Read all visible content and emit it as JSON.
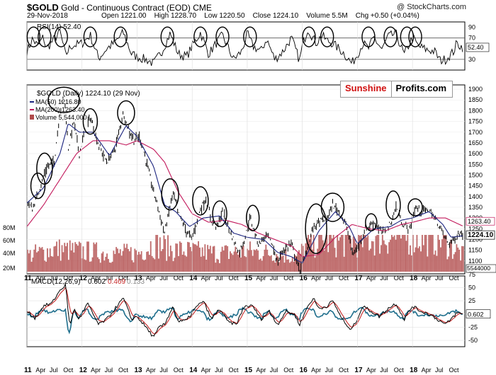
{
  "header": {
    "symbol": "$GOLD",
    "name": "Gold - Continuous Contract (EOD)",
    "exchange": "CME",
    "date": "29-Nov-2018",
    "open_label": "Open",
    "open": "1221.00",
    "high_label": "High",
    "high": "1228.70",
    "low_label": "Low",
    "low": "1220.50",
    "close_label": "Close",
    "close": "1224.10",
    "volume_label": "Volume",
    "volume": "5.5M",
    "chg_label": "Chg",
    "chg": "+0.50 (+0.04%)",
    "copyright": "@ StockCharts.com"
  },
  "logo": {
    "part1": "Sunshine",
    "part2": "Profits.com"
  },
  "colors": {
    "price": "#000000",
    "ma50": "#1a237e",
    "ma200": "#c2185b",
    "volume": "#b04a4a",
    "macd": "#000000",
    "signal": "#c62828",
    "histogram": "#1e6e8c",
    "rsi": "#000000"
  },
  "chart_data": [
    {
      "type": "line",
      "panel": "rsi",
      "legend": "RSI(14) 52.40",
      "current_value_label": "52.40",
      "ylim": [
        10,
        100
      ],
      "yticks": [
        30,
        50,
        70,
        90
      ],
      "reference_lines": [
        30,
        70
      ],
      "keypoints": [
        [
          2011.0,
          45
        ],
        [
          2011.1,
          68
        ],
        [
          2011.2,
          55
        ],
        [
          2011.3,
          72
        ],
        [
          2011.35,
          50
        ],
        [
          2011.45,
          62
        ],
        [
          2011.6,
          82
        ],
        [
          2011.7,
          38
        ],
        [
          2011.8,
          55
        ],
        [
          2012.0,
          60
        ],
        [
          2012.15,
          75
        ],
        [
          2012.3,
          32
        ],
        [
          2012.45,
          50
        ],
        [
          2012.6,
          62
        ],
        [
          2012.75,
          80
        ],
        [
          2012.9,
          40
        ],
        [
          2013.0,
          35
        ],
        [
          2013.2,
          28
        ],
        [
          2013.3,
          22
        ],
        [
          2013.45,
          45
        ],
        [
          2013.6,
          78
        ],
        [
          2013.75,
          40
        ],
        [
          2013.9,
          35
        ],
        [
          2014.0,
          55
        ],
        [
          2014.15,
          80
        ],
        [
          2014.3,
          40
        ],
        [
          2014.45,
          62
        ],
        [
          2014.55,
          75
        ],
        [
          2014.75,
          30
        ],
        [
          2014.9,
          45
        ],
        [
          2015.0,
          78
        ],
        [
          2015.1,
          55
        ],
        [
          2015.25,
          45
        ],
        [
          2015.35,
          68
        ],
        [
          2015.5,
          30
        ],
        [
          2015.65,
          45
        ],
        [
          2015.8,
          70
        ],
        [
          2015.95,
          28
        ],
        [
          2016.0,
          55
        ],
        [
          2016.1,
          88
        ],
        [
          2016.25,
          60
        ],
        [
          2016.35,
          75
        ],
        [
          2016.45,
          65
        ],
        [
          2016.55,
          60
        ],
        [
          2016.75,
          42
        ],
        [
          2016.9,
          22
        ],
        [
          2017.0,
          40
        ],
        [
          2017.1,
          60
        ],
        [
          2017.2,
          50
        ],
        [
          2017.3,
          70
        ],
        [
          2017.45,
          48
        ],
        [
          2017.55,
          72
        ],
        [
          2017.7,
          78
        ],
        [
          2017.85,
          38
        ],
        [
          2018.0,
          72
        ],
        [
          2018.1,
          55
        ],
        [
          2018.25,
          48
        ],
        [
          2018.4,
          45
        ],
        [
          2018.5,
          28
        ],
        [
          2018.6,
          30
        ],
        [
          2018.75,
          45
        ],
        [
          2018.8,
          60
        ],
        [
          2018.91,
          52.4
        ]
      ]
    },
    {
      "type": "line",
      "panel": "price",
      "legend_price": "$GOLD (Daily) 1224.10 (29 Nov)",
      "legend_ma50": "MA(50) 1216.80",
      "legend_ma200": "MA(200) 1263.40",
      "legend_volume": "Volume 5,544,000",
      "label_ma200": "1263.40",
      "label_price": "1224.10",
      "label_volume": "5544000",
      "ylim": [
        1040,
        1920
      ],
      "yticks": [
        1100,
        1150,
        1200,
        1250,
        1300,
        1350,
        1400,
        1450,
        1500,
        1550,
        1600,
        1650,
        1700,
        1750,
        1800,
        1850,
        1900
      ],
      "volume_yticks": [
        "20M",
        "40M",
        "60M",
        "80M"
      ],
      "volume_ylim": [
        0,
        150
      ],
      "price_keypoints": [
        [
          2011.0,
          1380
        ],
        [
          2011.1,
          1340
        ],
        [
          2011.25,
          1450
        ],
        [
          2011.35,
          1530
        ],
        [
          2011.5,
          1570
        ],
        [
          2011.6,
          1800
        ],
        [
          2011.68,
          1880
        ],
        [
          2011.75,
          1620
        ],
        [
          2011.85,
          1750
        ],
        [
          2011.95,
          1600
        ],
        [
          2012.05,
          1700
        ],
        [
          2012.15,
          1770
        ],
        [
          2012.3,
          1640
        ],
        [
          2012.45,
          1560
        ],
        [
          2012.6,
          1620
        ],
        [
          2012.75,
          1790
        ],
        [
          2012.85,
          1710
        ],
        [
          2012.95,
          1660
        ],
        [
          2013.05,
          1680
        ],
        [
          2013.15,
          1580
        ],
        [
          2013.3,
          1420
        ],
        [
          2013.35,
          1380
        ],
        [
          2013.5,
          1230
        ],
        [
          2013.65,
          1420
        ],
        [
          2013.75,
          1320
        ],
        [
          2013.9,
          1240
        ],
        [
          2013.99,
          1200
        ],
        [
          2014.15,
          1340
        ],
        [
          2014.25,
          1390
        ],
        [
          2014.35,
          1290
        ],
        [
          2014.45,
          1260
        ],
        [
          2014.55,
          1330
        ],
        [
          2014.7,
          1230
        ],
        [
          2014.85,
          1140
        ],
        [
          2014.95,
          1200
        ],
        [
          2015.05,
          1300
        ],
        [
          2015.2,
          1180
        ],
        [
          2015.35,
          1220
        ],
        [
          2015.45,
          1180
        ],
        [
          2015.55,
          1090
        ],
        [
          2015.65,
          1150
        ],
        [
          2015.8,
          1180
        ],
        [
          2015.95,
          1055
        ],
        [
          2016.05,
          1120
        ],
        [
          2016.2,
          1260
        ],
        [
          2016.35,
          1290
        ],
        [
          2016.45,
          1300
        ],
        [
          2016.55,
          1360
        ],
        [
          2016.7,
          1320
        ],
        [
          2016.8,
          1260
        ],
        [
          2016.92,
          1130
        ],
        [
          2017.0,
          1160
        ],
        [
          2017.15,
          1250
        ],
        [
          2017.3,
          1280
        ],
        [
          2017.45,
          1230
        ],
        [
          2017.6,
          1270
        ],
        [
          2017.7,
          1350
        ],
        [
          2017.8,
          1280
        ],
        [
          2017.95,
          1245
        ],
        [
          2018.05,
          1350
        ],
        [
          2018.15,
          1330
        ],
        [
          2018.3,
          1340
        ],
        [
          2018.45,
          1280
        ],
        [
          2018.55,
          1230
        ],
        [
          2018.65,
          1180
        ],
        [
          2018.75,
          1200
        ],
        [
          2018.85,
          1230
        ],
        [
          2018.91,
          1224
        ]
      ],
      "ma50_keypoints": [
        [
          2011.0,
          1370
        ],
        [
          2011.3,
          1440
        ],
        [
          2011.6,
          1600
        ],
        [
          2011.75,
          1740
        ],
        [
          2011.95,
          1700
        ],
        [
          2012.2,
          1700
        ],
        [
          2012.5,
          1590
        ],
        [
          2012.8,
          1730
        ],
        [
          2013.0,
          1680
        ],
        [
          2013.3,
          1540
        ],
        [
          2013.5,
          1360
        ],
        [
          2013.7,
          1330
        ],
        [
          2013.95,
          1260
        ],
        [
          2014.2,
          1300
        ],
        [
          2014.5,
          1310
        ],
        [
          2014.75,
          1230
        ],
        [
          2015.0,
          1210
        ],
        [
          2015.3,
          1200
        ],
        [
          2015.55,
          1140
        ],
        [
          2015.8,
          1120
        ],
        [
          2016.0,
          1090
        ],
        [
          2016.3,
          1240
        ],
        [
          2016.6,
          1330
        ],
        [
          2016.85,
          1260
        ],
        [
          2017.0,
          1180
        ],
        [
          2017.3,
          1250
        ],
        [
          2017.6,
          1260
        ],
        [
          2017.8,
          1290
        ],
        [
          2018.0,
          1300
        ],
        [
          2018.3,
          1330
        ],
        [
          2018.55,
          1270
        ],
        [
          2018.7,
          1210
        ],
        [
          2018.91,
          1217
        ]
      ],
      "ma200_keypoints": [
        [
          2011.0,
          1260
        ],
        [
          2011.3,
          1360
        ],
        [
          2011.6,
          1480
        ],
        [
          2011.9,
          1600
        ],
        [
          2012.2,
          1660
        ],
        [
          2012.5,
          1660
        ],
        [
          2012.8,
          1640
        ],
        [
          2013.0,
          1660
        ],
        [
          2013.3,
          1620
        ],
        [
          2013.5,
          1560
        ],
        [
          2013.75,
          1420
        ],
        [
          2014.0,
          1320
        ],
        [
          2014.3,
          1280
        ],
        [
          2014.6,
          1290
        ],
        [
          2014.9,
          1270
        ],
        [
          2015.2,
          1230
        ],
        [
          2015.5,
          1200
        ],
        [
          2015.8,
          1170
        ],
        [
          2016.0,
          1120
        ],
        [
          2016.3,
          1130
        ],
        [
          2016.6,
          1210
        ],
        [
          2016.9,
          1270
        ],
        [
          2017.2,
          1250
        ],
        [
          2017.5,
          1240
        ],
        [
          2017.8,
          1270
        ],
        [
          2018.0,
          1280
        ],
        [
          2018.3,
          1300
        ],
        [
          2018.6,
          1300
        ],
        [
          2018.91,
          1263
        ]
      ],
      "volume_keypoints": [
        [
          2011.0,
          40
        ],
        [
          2011.5,
          55
        ],
        [
          2012.0,
          50
        ],
        [
          2012.5,
          45
        ],
        [
          2013.0,
          45
        ],
        [
          2013.3,
          70
        ],
        [
          2013.6,
          55
        ],
        [
          2014.0,
          50
        ],
        [
          2014.5,
          45
        ],
        [
          2015.0,
          50
        ],
        [
          2015.5,
          45
        ],
        [
          2015.9,
          35
        ],
        [
          2016.1,
          70
        ],
        [
          2016.5,
          75
        ],
        [
          2017.0,
          75
        ],
        [
          2017.5,
          85
        ],
        [
          2018.0,
          85
        ],
        [
          2018.5,
          80
        ],
        [
          2018.91,
          40
        ]
      ]
    },
    {
      "type": "line",
      "panel": "macd",
      "legend_label": "MACD(12,26,9)",
      "legend_macd": "0.602",
      "legend_signal": "0.469",
      "legend_hist": "0.133",
      "current_value_label": "0.602",
      "ylim": [
        -62,
        72
      ],
      "yticks": [
        -50,
        -25,
        0,
        25,
        50,
        75
      ],
      "ytick_labels": [
        "-50",
        "-25",
        "0",
        "25",
        "50",
        "75"
      ],
      "keypoints": [
        [
          2011.0,
          5
        ],
        [
          2011.15,
          -8
        ],
        [
          2011.3,
          15
        ],
        [
          2011.45,
          20
        ],
        [
          2011.6,
          45
        ],
        [
          2011.7,
          55
        ],
        [
          2011.78,
          -25
        ],
        [
          2011.85,
          10
        ],
        [
          2011.95,
          -10
        ],
        [
          2012.1,
          20
        ],
        [
          2012.3,
          -20
        ],
        [
          2012.45,
          -10
        ],
        [
          2012.6,
          10
        ],
        [
          2012.75,
          30
        ],
        [
          2012.9,
          -10
        ],
        [
          2013.0,
          -5
        ],
        [
          2013.2,
          -30
        ],
        [
          2013.3,
          -45
        ],
        [
          2013.4,
          -25
        ],
        [
          2013.5,
          -20
        ],
        [
          2013.65,
          15
        ],
        [
          2013.75,
          -15
        ],
        [
          2013.9,
          -12
        ],
        [
          2014.05,
          10
        ],
        [
          2014.2,
          25
        ],
        [
          2014.35,
          -10
        ],
        [
          2014.5,
          10
        ],
        [
          2014.65,
          -15
        ],
        [
          2014.8,
          -20
        ],
        [
          2014.95,
          15
        ],
        [
          2015.1,
          15
        ],
        [
          2015.25,
          -10
        ],
        [
          2015.4,
          5
        ],
        [
          2015.55,
          -20
        ],
        [
          2015.7,
          5
        ],
        [
          2015.85,
          0
        ],
        [
          2015.95,
          -20
        ],
        [
          2016.1,
          15
        ],
        [
          2016.2,
          30
        ],
        [
          2016.3,
          10
        ],
        [
          2016.45,
          15
        ],
        [
          2016.55,
          25
        ],
        [
          2016.7,
          -5
        ],
        [
          2016.85,
          -30
        ],
        [
          2016.95,
          -20
        ],
        [
          2017.1,
          15
        ],
        [
          2017.25,
          5
        ],
        [
          2017.4,
          -5
        ],
        [
          2017.55,
          10
        ],
        [
          2017.7,
          20
        ],
        [
          2017.85,
          -10
        ],
        [
          2018.0,
          15
        ],
        [
          2018.15,
          5
        ],
        [
          2018.3,
          0
        ],
        [
          2018.45,
          -10
        ],
        [
          2018.6,
          -20
        ],
        [
          2018.7,
          -10
        ],
        [
          2018.8,
          2
        ],
        [
          2018.91,
          0.6
        ]
      ]
    }
  ],
  "x_axis": {
    "year_labels": [
      "11",
      "12",
      "13",
      "14",
      "15",
      "16",
      "17",
      "18"
    ],
    "month_labels": [
      "Apr",
      "Jul",
      "Oct"
    ]
  }
}
